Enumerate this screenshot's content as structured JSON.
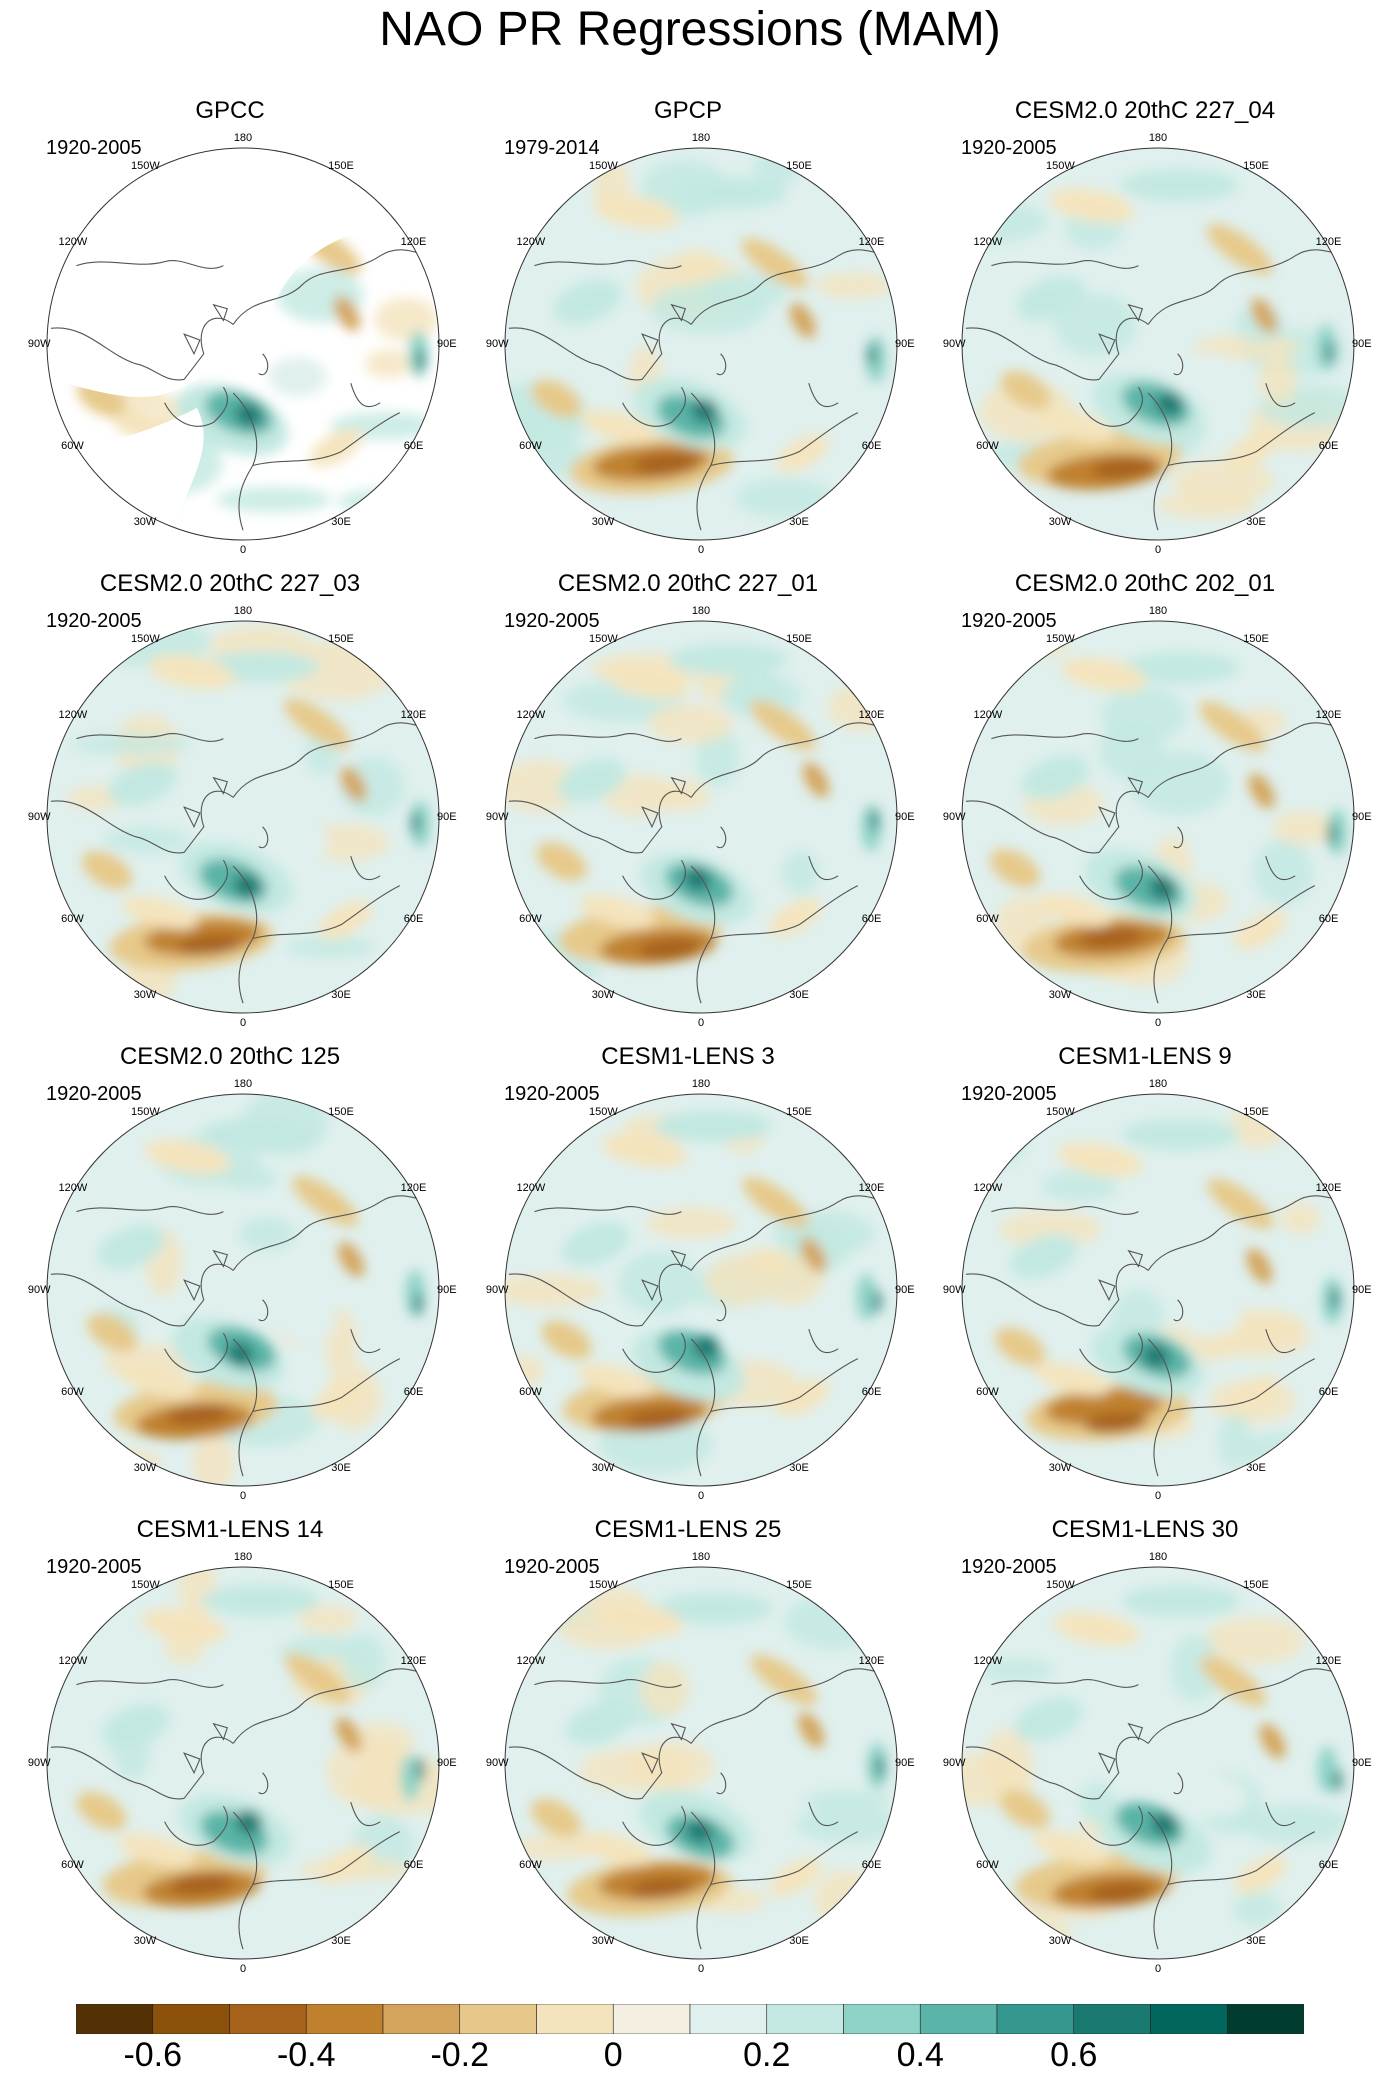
{
  "title": "NAO PR Regressions (MAM)",
  "colors": {
    "scale": [
      "#543005",
      "#8c510a",
      "#a6611a",
      "#bf812d",
      "#d4a45c",
      "#e6c98a",
      "#f4e4bd",
      "#f5efe1",
      "#e0f0ee",
      "#c2e8e1",
      "#8fd3c7",
      "#5ab4a7",
      "#35978f",
      "#1a7a72",
      "#01665e",
      "#003c30"
    ],
    "coast": "#555555",
    "border": "#333333"
  },
  "colorbar": {
    "labels": [
      "-0.6",
      "-0.4",
      "-0.2",
      "0",
      "0.2",
      "0.4",
      "0.6"
    ]
  },
  "longitude_labels": [
    "180",
    "150E",
    "120E",
    "90E",
    "60E",
    "30E",
    "0",
    "30W",
    "60W",
    "90W",
    "120W",
    "150W"
  ],
  "panels": [
    {
      "title": "GPCC",
      "period": "1920-2005"
    },
    {
      "title": "GPCP",
      "period": "1979-2014"
    },
    {
      "title": "CESM2.0 20thC 227_04",
      "period": "1920-2005"
    },
    {
      "title": "CESM2.0 20thC 227_03",
      "period": "1920-2005"
    },
    {
      "title": "CESM2.0 20thC 227_01",
      "period": "1920-2005"
    },
    {
      "title": "CESM2.0 20thC 202_01",
      "period": "1920-2005"
    },
    {
      "title": "CESM2.0 20thC 125",
      "period": "1920-2005"
    },
    {
      "title": "CESM1-LENS 3",
      "period": "1920-2005"
    },
    {
      "title": "CESM1-LENS 9",
      "period": "1920-2005"
    },
    {
      "title": "CESM1-LENS 14",
      "period": "1920-2005"
    },
    {
      "title": "CESM1-LENS 25",
      "period": "1920-2005"
    },
    {
      "title": "CESM1-LENS 30",
      "period": "1920-2005"
    }
  ]
}
